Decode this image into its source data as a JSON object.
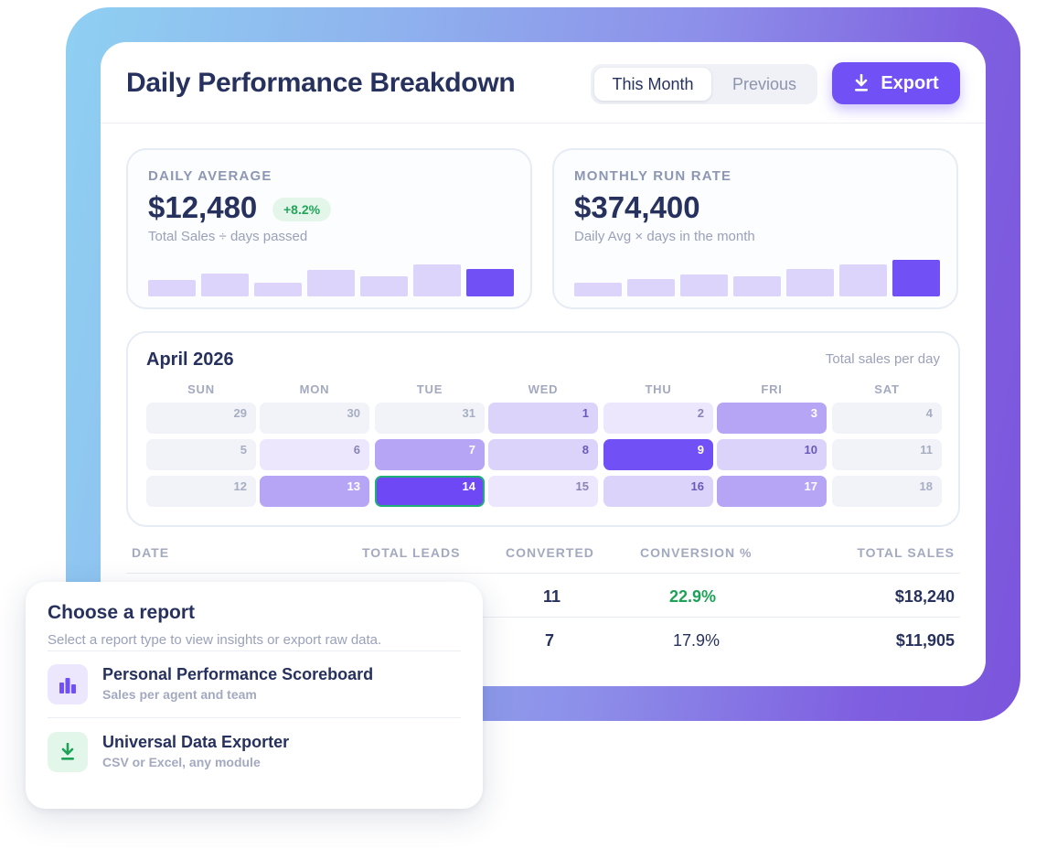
{
  "header": {
    "title": "Daily Performance Breakdown"
  },
  "period_toggle": {
    "options": [
      "This Month",
      "Previous"
    ],
    "selected": "This Month"
  },
  "export_button": {
    "label": "Export",
    "icon": "download-icon"
  },
  "accent_color": "#7150f6",
  "kpis": [
    {
      "label": "DAILY AVERAGE",
      "value": "$12,480",
      "change": "+8.2%",
      "subtitle": "Total Sales ÷ days passed",
      "bar_levels": [
        0.4,
        0.57,
        0.34,
        0.66,
        0.49,
        0.8,
        0.69
      ],
      "highlight_index": 6
    },
    {
      "label": "MONTHLY RUN RATE",
      "value": "$374,400",
      "change": null,
      "subtitle": "Daily Avg × days in the month",
      "bar_levels": [
        0.34,
        0.43,
        0.54,
        0.49,
        0.69,
        0.8,
        0.91
      ],
      "highlight_index": 6
    }
  ],
  "calendar": {
    "month": "April 2026",
    "note": "Total sales per day",
    "weekdays": [
      "SUN",
      "MON",
      "TUE",
      "WED",
      "THU",
      "FRI",
      "SAT"
    ],
    "weeks": [
      [
        {
          "day": "29",
          "level": 0
        },
        {
          "day": "30",
          "level": 0
        },
        {
          "day": "31",
          "level": 0
        },
        {
          "day": "1",
          "level": 2
        },
        {
          "day": "2",
          "level": 1
        },
        {
          "day": "3",
          "level": 3
        },
        {
          "day": "4",
          "level": 0
        }
      ],
      [
        {
          "day": "5",
          "level": 0
        },
        {
          "day": "6",
          "level": 1
        },
        {
          "day": "7",
          "level": 3
        },
        {
          "day": "8",
          "level": 2
        },
        {
          "day": "9",
          "level": 4
        },
        {
          "day": "10",
          "level": 2
        },
        {
          "day": "11",
          "level": 0
        }
      ],
      [
        {
          "day": "12",
          "level": 0
        },
        {
          "day": "13",
          "level": 3
        },
        {
          "day": "14",
          "level": 4,
          "selected": true
        },
        {
          "day": "15",
          "level": 1
        },
        {
          "day": "16",
          "level": 2
        },
        {
          "day": "17",
          "level": 3
        },
        {
          "day": "18",
          "level": 0
        }
      ]
    ]
  },
  "table": {
    "columns": [
      "DATE",
      "TOTAL LEADS",
      "CONVERTED",
      "CONVERSION %",
      "TOTAL SALES"
    ],
    "rows": [
      {
        "converted": "11",
        "conversion": "22.9%",
        "sales": "$18,240"
      },
      {
        "converted": "7",
        "conversion": "17.9%",
        "sales": "$11,905"
      }
    ]
  },
  "report_popup": {
    "title": "Choose a report",
    "subtitle": "Select a report type to view insights or export raw data.",
    "options": [
      {
        "title": "Personal Performance Scoreboard",
        "subtitle": "Sales per agent and team",
        "icon": "bar-chart-icon"
      },
      {
        "title": "Universal Data Exporter",
        "subtitle": "CSV or Excel, any module",
        "icon": "download-icon"
      }
    ]
  }
}
